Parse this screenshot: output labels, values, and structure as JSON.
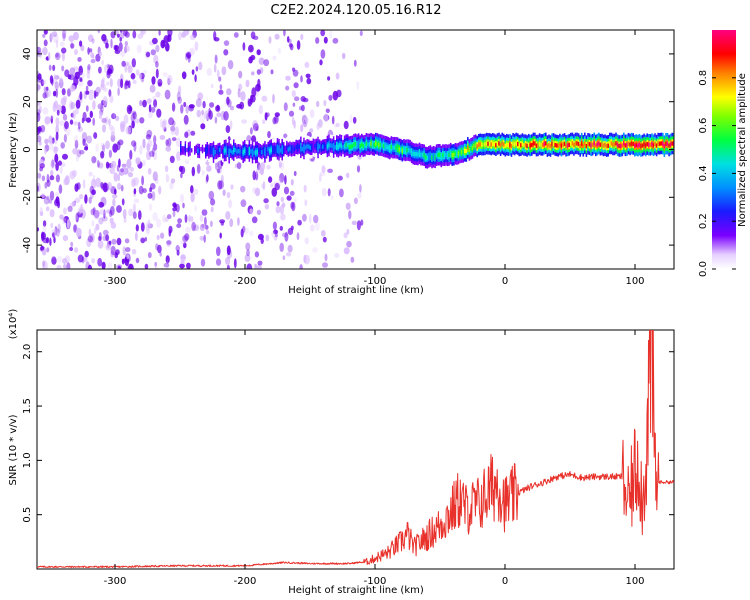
{
  "title": "C2E2.2024.120.05.16.R12",
  "colors": {
    "snr_line": "#e8312a",
    "axis": "#000000",
    "speckle": "#6a00e8",
    "background": "#ffffff"
  },
  "chart_data": [
    {
      "type": "heatmap",
      "xlabel": "Height of straight line (km)",
      "ylabel": "Frequency (Hz)",
      "xlim": [
        -360,
        130
      ],
      "ylim": [
        -50,
        50
      ],
      "x_ticks": [
        -300,
        -200,
        -100,
        0,
        100
      ],
      "y_ticks": [
        -40,
        -20,
        0,
        20,
        40
      ],
      "colorbar": {
        "label": "Normalized spectral amplitude",
        "range": [
          0.0,
          1.0
        ],
        "ticks": [
          0.0,
          0.2,
          0.4,
          0.6,
          0.8
        ],
        "tick_labels": [
          "0.0",
          "0.2",
          "0.4",
          "0.6",
          "0.8"
        ],
        "colormap": "rainbow (white-violet-blue-cyan-green-yellow-red-magenta)"
      },
      "features": {
        "noise_region_x": [
          -360,
          -110
        ],
        "band_center_hz": [
          [
            -250,
            0
          ],
          [
            -200,
            -1
          ],
          [
            -150,
            1
          ],
          [
            -100,
            2
          ],
          [
            -80,
            0
          ],
          [
            -60,
            -3
          ],
          [
            -40,
            -2
          ],
          [
            -20,
            2
          ],
          [
            0,
            2
          ],
          [
            50,
            2
          ],
          [
            100,
            2
          ],
          [
            130,
            2
          ]
        ],
        "band_peak_amplitude": [
          [
            -250,
            0.2
          ],
          [
            -200,
            0.4
          ],
          [
            -150,
            0.3
          ],
          [
            -120,
            0.5
          ],
          [
            -100,
            0.6
          ],
          [
            -80,
            0.6
          ],
          [
            -60,
            0.5
          ],
          [
            -40,
            0.6
          ],
          [
            -20,
            0.8
          ],
          [
            0,
            0.85
          ],
          [
            50,
            0.9
          ],
          [
            100,
            0.95
          ],
          [
            130,
            1.0
          ]
        ]
      }
    },
    {
      "type": "line",
      "xlabel": "Height of straight line (km)",
      "ylabel": "SNR (10 * v/v)",
      "scale_label": "(x10⁴)",
      "xlim": [
        -360,
        130
      ],
      "ylim": [
        0,
        2.2
      ],
      "x_ticks": [
        -300,
        -200,
        -100,
        0,
        100
      ],
      "y_ticks": [
        0.5,
        1.0,
        1.5,
        2.0
      ],
      "y_tick_labels": [
        "0.5",
        "1.0",
        "1.5",
        "2.0"
      ],
      "series": [
        {
          "x": [
            -360,
            -300,
            -250,
            -200,
            -180,
            -170,
            -150,
            -120,
            -105,
            -100,
            -90,
            -80,
            -75,
            -70,
            -60,
            -50,
            -40,
            -35,
            -30,
            -20,
            -10,
            -5,
            0,
            10,
            20,
            30,
            40,
            50,
            60,
            70,
            80,
            90,
            95,
            100,
            103,
            106,
            110,
            112,
            116,
            120,
            130
          ],
          "y": [
            0.02,
            0.02,
            0.03,
            0.03,
            0.05,
            0.06,
            0.05,
            0.05,
            0.07,
            0.1,
            0.15,
            0.25,
            0.32,
            0.2,
            0.3,
            0.4,
            0.55,
            0.65,
            0.55,
            0.6,
            0.75,
            0.8,
            0.6,
            0.7,
            0.76,
            0.8,
            0.85,
            0.87,
            0.84,
            0.85,
            0.85,
            0.85,
            0.6,
            0.9,
            1.05,
            0.55,
            1.4,
            2.15,
            0.8,
            0.8,
            0.8
          ]
        }
      ]
    }
  ]
}
